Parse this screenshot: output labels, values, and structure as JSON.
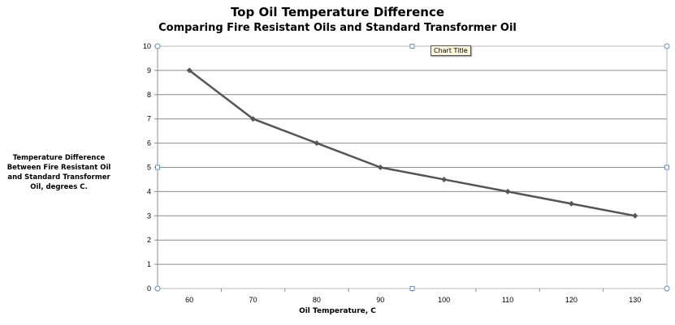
{
  "chart_data": {
    "type": "line",
    "title": "Top Oil Temperature Difference",
    "subtitle": "Comparing Fire Resistant Oils and Standard Transformer Oil",
    "xlabel": "Oil Temperature, C",
    "ylabel": "Temperature Difference Between Fire Resistant Oil and Standard Transformer Oil, degrees C.",
    "x": [
      60,
      70,
      80,
      90,
      100,
      110,
      120,
      130
    ],
    "series": [
      {
        "values": [
          9,
          7,
          6,
          5,
          4.5,
          4,
          3.5,
          3
        ]
      }
    ],
    "ylim": [
      0,
      10
    ],
    "yticks": [
      0,
      1,
      2,
      3,
      4,
      5,
      6,
      7,
      8,
      9,
      10
    ],
    "grid": true,
    "legend": "none",
    "line_color": "#555555"
  },
  "tooltip": "Chart Title"
}
